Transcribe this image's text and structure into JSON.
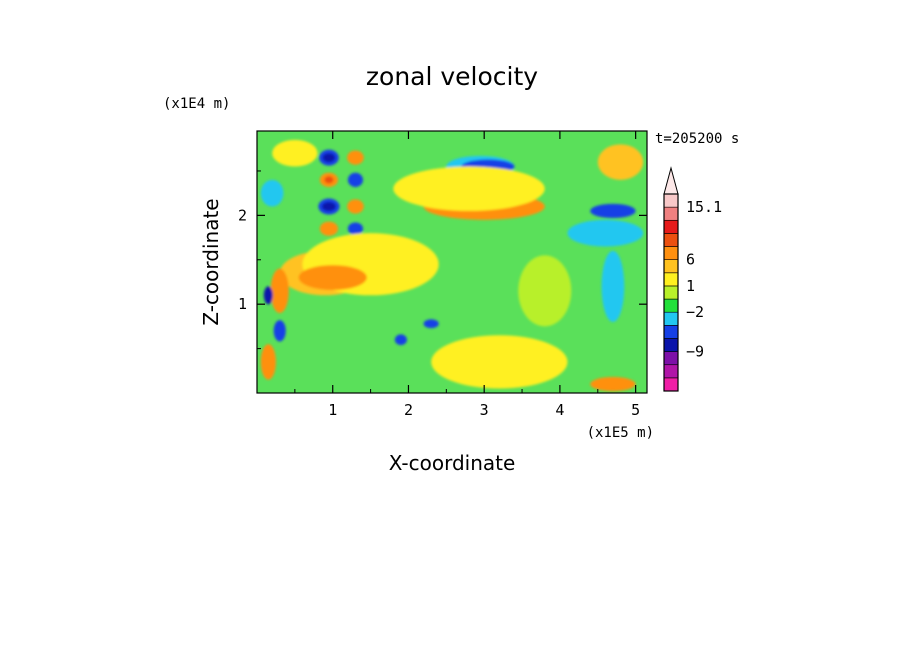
{
  "chart_data": {
    "type": "heatmap",
    "title": "zonal velocity",
    "xlabel": "X-coordinate",
    "ylabel": "Z-coordinate",
    "x_unit": "(x1E5 m)",
    "y_unit": "(x1E4 m)",
    "time_label": "t=205200 s",
    "xlim": [
      0,
      5.15
    ],
    "ylim": [
      0,
      2.95
    ],
    "x_ticks": [
      "1",
      "2",
      "3",
      "4",
      "5"
    ],
    "y_ticks": [
      "1",
      "2"
    ],
    "colorbar": {
      "tick_labels": [
        "15.1",
        "6",
        "1",
        "−2",
        "−9"
      ],
      "tick_values": [
        15.1,
        6,
        1,
        -2,
        -9
      ],
      "colors": [
        "#f01ea6",
        "#b015a8",
        "#7d10a8",
        "#0a14aa",
        "#1540e6",
        "#22c7f0",
        "#22e03a",
        "#b8f02a",
        "#fff020",
        "#ffc220",
        "#ff9010",
        "#ec5010",
        "#e61a1a",
        "#f08080",
        "#f8c8c8"
      ]
    },
    "field": {
      "background_color": "#5ae05a",
      "patches": [
        {
          "x": 0.95,
          "z": 2.65,
          "rx": 0.13,
          "rz": 0.09,
          "color": "#1540e6"
        },
        {
          "x": 0.95,
          "z": 2.65,
          "rx": 0.08,
          "rz": 0.05,
          "color": "#0a14aa"
        },
        {
          "x": 0.95,
          "z": 2.4,
          "rx": 0.12,
          "rz": 0.08,
          "color": "#ff9010"
        },
        {
          "x": 0.95,
          "z": 2.4,
          "rx": 0.06,
          "rz": 0.04,
          "color": "#ec5010"
        },
        {
          "x": 0.95,
          "z": 2.1,
          "rx": 0.14,
          "rz": 0.09,
          "color": "#1540e6"
        },
        {
          "x": 0.95,
          "z": 2.1,
          "rx": 0.09,
          "rz": 0.05,
          "color": "#0a14aa"
        },
        {
          "x": 0.95,
          "z": 1.85,
          "rx": 0.12,
          "rz": 0.08,
          "color": "#ff9010"
        },
        {
          "x": 1.3,
          "z": 2.65,
          "rx": 0.11,
          "rz": 0.08,
          "color": "#ff9010"
        },
        {
          "x": 1.3,
          "z": 2.4,
          "rx": 0.1,
          "rz": 0.08,
          "color": "#1540e6"
        },
        {
          "x": 1.3,
          "z": 2.1,
          "rx": 0.11,
          "rz": 0.08,
          "color": "#ff9010"
        },
        {
          "x": 1.3,
          "z": 1.85,
          "rx": 0.1,
          "rz": 0.07,
          "color": "#1540e6"
        },
        {
          "x": 2.95,
          "z": 2.55,
          "rx": 0.45,
          "rz": 0.12,
          "color": "#22c7f0"
        },
        {
          "x": 3.05,
          "z": 2.55,
          "rx": 0.35,
          "rz": 0.08,
          "color": "#1540e6"
        },
        {
          "x": 3.0,
          "z": 2.1,
          "rx": 0.8,
          "rz": 0.15,
          "color": "#ff9010"
        },
        {
          "x": 2.8,
          "z": 2.3,
          "rx": 1.0,
          "rz": 0.25,
          "color": "#fff020"
        },
        {
          "x": 4.7,
          "z": 2.05,
          "rx": 0.3,
          "rz": 0.08,
          "color": "#1540e6"
        },
        {
          "x": 4.6,
          "z": 1.8,
          "rx": 0.5,
          "rz": 0.15,
          "color": "#22c7f0"
        },
        {
          "x": 0.9,
          "z": 1.35,
          "rx": 0.6,
          "rz": 0.25,
          "color": "#ffc220"
        },
        {
          "x": 1.5,
          "z": 1.45,
          "rx": 0.9,
          "rz": 0.35,
          "color": "#fff020"
        },
        {
          "x": 1.0,
          "z": 1.3,
          "rx": 0.45,
          "rz": 0.14,
          "color": "#ff9010"
        },
        {
          "x": 0.3,
          "z": 1.15,
          "rx": 0.12,
          "rz": 0.25,
          "color": "#ff9010"
        },
        {
          "x": 0.15,
          "z": 1.1,
          "rx": 0.06,
          "rz": 0.1,
          "color": "#0a14aa"
        },
        {
          "x": 0.3,
          "z": 0.7,
          "rx": 0.08,
          "rz": 0.12,
          "color": "#1540e6"
        },
        {
          "x": 0.15,
          "z": 0.35,
          "rx": 0.1,
          "rz": 0.2,
          "color": "#ff9010"
        },
        {
          "x": 1.9,
          "z": 0.6,
          "rx": 0.08,
          "rz": 0.06,
          "color": "#1540e6"
        },
        {
          "x": 2.3,
          "z": 0.78,
          "rx": 0.1,
          "rz": 0.05,
          "color": "#1540e6"
        },
        {
          "x": 3.2,
          "z": 0.35,
          "rx": 0.9,
          "rz": 0.3,
          "color": "#fff020"
        },
        {
          "x": 4.7,
          "z": 0.1,
          "rx": 0.3,
          "rz": 0.08,
          "color": "#ff9010"
        },
        {
          "x": 3.8,
          "z": 1.15,
          "rx": 0.35,
          "rz": 0.4,
          "color": "#b8f02a"
        },
        {
          "x": 4.7,
          "z": 1.2,
          "rx": 0.15,
          "rz": 0.4,
          "color": "#22c7f0"
        },
        {
          "x": 4.8,
          "z": 2.6,
          "rx": 0.3,
          "rz": 0.2,
          "color": "#ffc220"
        },
        {
          "x": 0.5,
          "z": 2.7,
          "rx": 0.3,
          "rz": 0.15,
          "color": "#fff020"
        },
        {
          "x": 0.2,
          "z": 2.25,
          "rx": 0.15,
          "rz": 0.15,
          "color": "#22c7f0"
        }
      ]
    }
  }
}
